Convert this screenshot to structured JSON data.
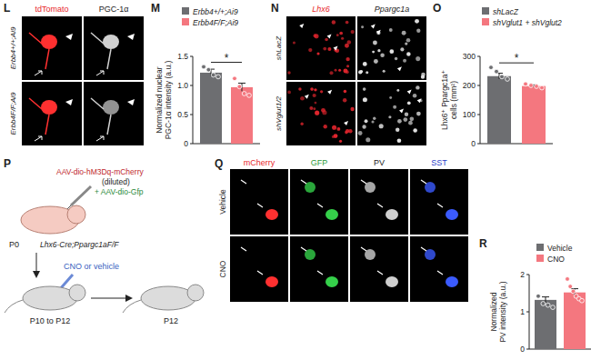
{
  "panels": {
    "L": {
      "letter": "L",
      "channels": [
        "tdTomato",
        "PGC-1α"
      ],
      "rows": [
        "Erbb4+/+;Ai9",
        "Erbb4F/F;Ai9"
      ]
    },
    "N": {
      "letter": "N",
      "channels": [
        "Lhx6",
        "Ppargc1a"
      ],
      "rows": [
        "shLacZ",
        "shVglut1/2"
      ]
    },
    "P": {
      "letter": "P",
      "injection": "AAV-dio-hM3Dq-mCherry",
      "dilution": "(diluted)",
      "coinjection": "+ AAV-dio-Gfp",
      "start_age": "P0",
      "genotype": "Lhx6-Cre;Ppargc1aF/F",
      "treatment": "CNO or vehicle",
      "window": "P10 to P12",
      "end_age": "P12"
    },
    "Q": {
      "letter": "Q",
      "channels": [
        "mCherry",
        "GFP",
        "PV",
        "SST"
      ],
      "rows": [
        "Vehicle",
        "CNO"
      ]
    }
  },
  "chart_data": [
    {
      "type": "bar",
      "title": "M",
      "y_label": [
        "Normalized nuclear",
        "PGC-1α intensity (a.u.)"
      ],
      "series": [
        {
          "name": "Erbb4+/+;Ai9",
          "color": "#6d6e71",
          "values": [
            1.22
          ],
          "errors": [
            0.06
          ],
          "points": [
            1.32,
            1.27,
            1.18,
            1.15
          ]
        },
        {
          "name": "Erbb4F/F;Ai9",
          "color": "#f4777f",
          "values": [
            0.97
          ],
          "errors": [
            0.07
          ],
          "points": [
            1.12,
            0.98,
            0.86,
            0.83
          ]
        }
      ],
      "ylim": [
        0,
        1.5
      ],
      "yticks": [
        0,
        0.5,
        {
          "value": 1,
          "label": "1.0"
        },
        1.5
      ],
      "legend": "top",
      "annotations": [
        "*"
      ]
    },
    {
      "type": "bar",
      "title": "O",
      "y_label": [
        "Lhx6⁺ Ppargc1a⁺",
        "cells (mm²)"
      ],
      "series": [
        {
          "name": "shLacZ",
          "color": "#6d6e71",
          "values": [
            232
          ],
          "errors": [
            10
          ],
          "points": [
            262,
            248,
            230,
            222
          ]
        },
        {
          "name": "shVglut1 + shVglut2",
          "color": "#f4777f",
          "values": [
            198
          ],
          "errors": [
            4
          ],
          "points": [
            205,
            200,
            197,
            192
          ]
        }
      ],
      "ylim": [
        0,
        300
      ],
      "yticks": [
        0,
        100,
        200,
        300
      ],
      "legend": "top",
      "annotations": [
        "*"
      ]
    },
    {
      "type": "bar",
      "title": "R",
      "y_label": [
        "Normalized",
        "PV intensity (a.u.)"
      ],
      "series": [
        {
          "name": "Vehicle",
          "color": "#6d6e71",
          "values": [
            1.32
          ],
          "errors": [
            0.08
          ],
          "points": [
            1.42,
            1.22,
            1.18,
            1.12
          ]
        },
        {
          "name": "CNO",
          "color": "#f4777f",
          "values": [
            1.52
          ],
          "errors": [
            0.1
          ],
          "points": [
            1.88,
            1.68,
            1.55,
            1.42,
            1.35,
            1.3
          ]
        }
      ],
      "ylim": [
        0,
        2
      ],
      "yticks": [
        0,
        1,
        2
      ],
      "legend": "top"
    }
  ]
}
